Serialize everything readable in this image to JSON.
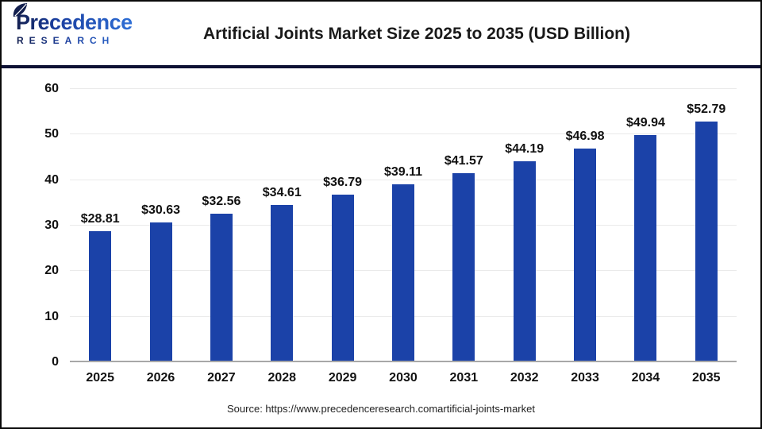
{
  "header": {
    "logo": {
      "line1": "Precedence",
      "line2": "RESEARCH"
    },
    "title": "Artificial Joints Market Size 2025 to 2035 (USD Billion)"
  },
  "chart_data": {
    "type": "bar",
    "title": "Artificial Joints Market Size 2025 to 2035 (USD Billion)",
    "categories": [
      "2025",
      "2026",
      "2027",
      "2028",
      "2029",
      "2030",
      "2031",
      "2032",
      "2033",
      "2034",
      "2035"
    ],
    "values": [
      28.81,
      30.63,
      32.56,
      34.61,
      36.79,
      39.11,
      41.57,
      44.19,
      46.98,
      49.94,
      52.79
    ],
    "value_labels": [
      "$28.81",
      "$30.63",
      "$32.56",
      "$34.61",
      "$36.79",
      "$39.11",
      "$41.57",
      "$44.19",
      "$46.98",
      "$49.94",
      "$52.79"
    ],
    "xlabel": "",
    "ylabel": "",
    "ylim": [
      0,
      60
    ],
    "yticks": [
      0,
      10,
      20,
      30,
      40,
      50,
      60
    ],
    "grid": true,
    "legend": "none",
    "bar_color": "#1b42a8"
  },
  "footer": {
    "source": "Source: https://www.precedenceresearch.comartificial-joints-market"
  },
  "colors": {
    "bar": "#1b42a8",
    "divider": "#0d1134",
    "gridline": "#eaeaea",
    "axis_line": "#a8a8a8",
    "text": "#111111",
    "logo_navy": "#131f4e",
    "logo_blue": "#2e6fd6"
  }
}
